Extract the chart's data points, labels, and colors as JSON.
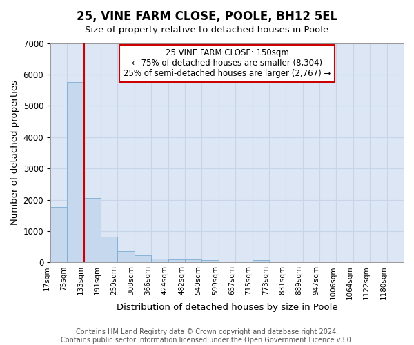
{
  "title1": "25, VINE FARM CLOSE, POOLE, BH12 5EL",
  "title2": "Size of property relative to detached houses in Poole",
  "xlabel": "Distribution of detached houses by size in Poole",
  "ylabel": "Number of detached properties",
  "bar_labels": [
    "17sqm",
    "75sqm",
    "133sqm",
    "191sqm",
    "250sqm",
    "308sqm",
    "366sqm",
    "424sqm",
    "482sqm",
    "540sqm",
    "599sqm",
    "657sqm",
    "715sqm",
    "773sqm",
    "831sqm",
    "889sqm",
    "947sqm",
    "1006sqm",
    "1064sqm",
    "1122sqm",
    "1180sqm"
  ],
  "bar_values": [
    1780,
    5750,
    2050,
    820,
    370,
    230,
    115,
    100,
    85,
    80,
    0,
    0,
    80,
    0,
    0,
    0,
    0,
    0,
    0,
    0,
    0
  ],
  "bar_color": "#c5d8ed",
  "bar_edgecolor": "#7aadd4",
  "vline_x": 1.5,
  "vline_color": "#cc0000",
  "annotation_line1": "25 VINE FARM CLOSE: 150sqm",
  "annotation_line2": "← 75% of detached houses are smaller (8,304)",
  "annotation_line3": "25% of semi-detached houses are larger (2,767) →",
  "annotation_box_edgecolor": "#cc0000",
  "ylim": [
    0,
    7000
  ],
  "yticks": [
    0,
    1000,
    2000,
    3000,
    4000,
    5000,
    6000,
    7000
  ],
  "grid_color": "#c8d4e8",
  "background_color": "#dce6f5",
  "footer1": "Contains HM Land Registry data © Crown copyright and database right 2024.",
  "footer2": "Contains public sector information licensed under the Open Government Licence v3.0."
}
